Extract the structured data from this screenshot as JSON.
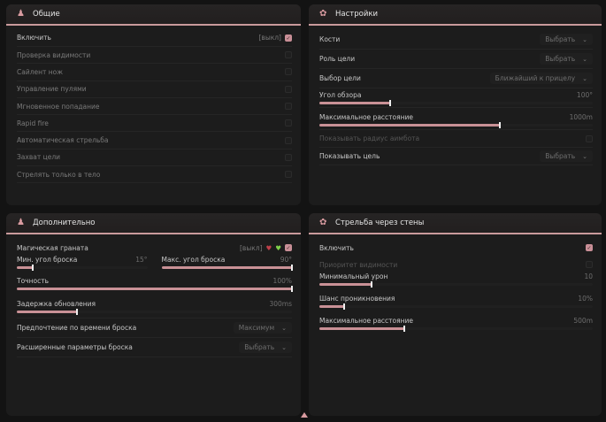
{
  "accent": "#c99196",
  "general": {
    "title": "Общие",
    "icon": "character-icon",
    "enable_label": "Включить",
    "enable_tag": "[выкл]",
    "enable_checked": true,
    "items": [
      {
        "label": "Проверка видимости",
        "checked": false
      },
      {
        "label": "Сайлент нож",
        "checked": false
      },
      {
        "label": "Управление пулями",
        "checked": false
      },
      {
        "label": "Мгновенное попадание",
        "checked": false
      },
      {
        "label": "Rapid fire",
        "checked": false
      },
      {
        "label": "Автоматическая стрельба",
        "checked": false
      },
      {
        "label": "Захват цели",
        "checked": false
      },
      {
        "label": "Стрелять только в тело",
        "checked": false
      }
    ]
  },
  "settings": {
    "title": "Настройки",
    "icon": "gear-icon",
    "bones": {
      "label": "Кости",
      "value": "Выбрать"
    },
    "target_role": {
      "label": "Роль цели",
      "value": "Выбрать"
    },
    "target_select": {
      "label": "Выбор цели",
      "value": "Ближайший к прицелу"
    },
    "fov": {
      "label": "Угол обзора",
      "value": "100°",
      "fraction": 0.26
    },
    "max_dist": {
      "label": "Максимальное расстояние",
      "value": "1000m",
      "fraction": 0.66
    },
    "show_radius": {
      "label": "Показывать радиус аимбота",
      "checked": false
    },
    "show_target": {
      "label": "Показывать цель",
      "value": "Выбрать"
    }
  },
  "extra": {
    "title": "Дополнительно",
    "icon": "character-icon",
    "grenade": {
      "label": "Магическая граната",
      "tag": "[выкл]",
      "checked": true
    },
    "min_angle": {
      "label": "Мин. угол броска",
      "value": "15°",
      "fraction": 0.12
    },
    "max_angle": {
      "label": "Макс. угол броска",
      "value": "90°",
      "fraction": 1.0
    },
    "accuracy": {
      "label": "Точность",
      "value": "100%",
      "fraction": 1.0
    },
    "delay": {
      "label": "Задержка обновления",
      "value": "300ms",
      "fraction": 0.22
    },
    "throw_pref": {
      "label": "Предпочтение по времени броска",
      "value": "Максимум"
    },
    "throw_adv": {
      "label": "Расширенные параметры броска",
      "value": "Выбрать"
    }
  },
  "wallbang": {
    "title": "Стрельба через стены",
    "icon": "gear-icon",
    "enable": {
      "label": "Включить",
      "checked": true
    },
    "priority": {
      "label": "Приоритет видимости",
      "checked": false
    },
    "min_dmg": {
      "label": "Минимальный урон",
      "value": "10",
      "fraction": 0.19
    },
    "pen_chance": {
      "label": "Шанс проникновения",
      "value": "10%",
      "fraction": 0.09
    },
    "max_dist": {
      "label": "Максимальное расстояние",
      "value": "500m",
      "fraction": 0.31
    }
  }
}
